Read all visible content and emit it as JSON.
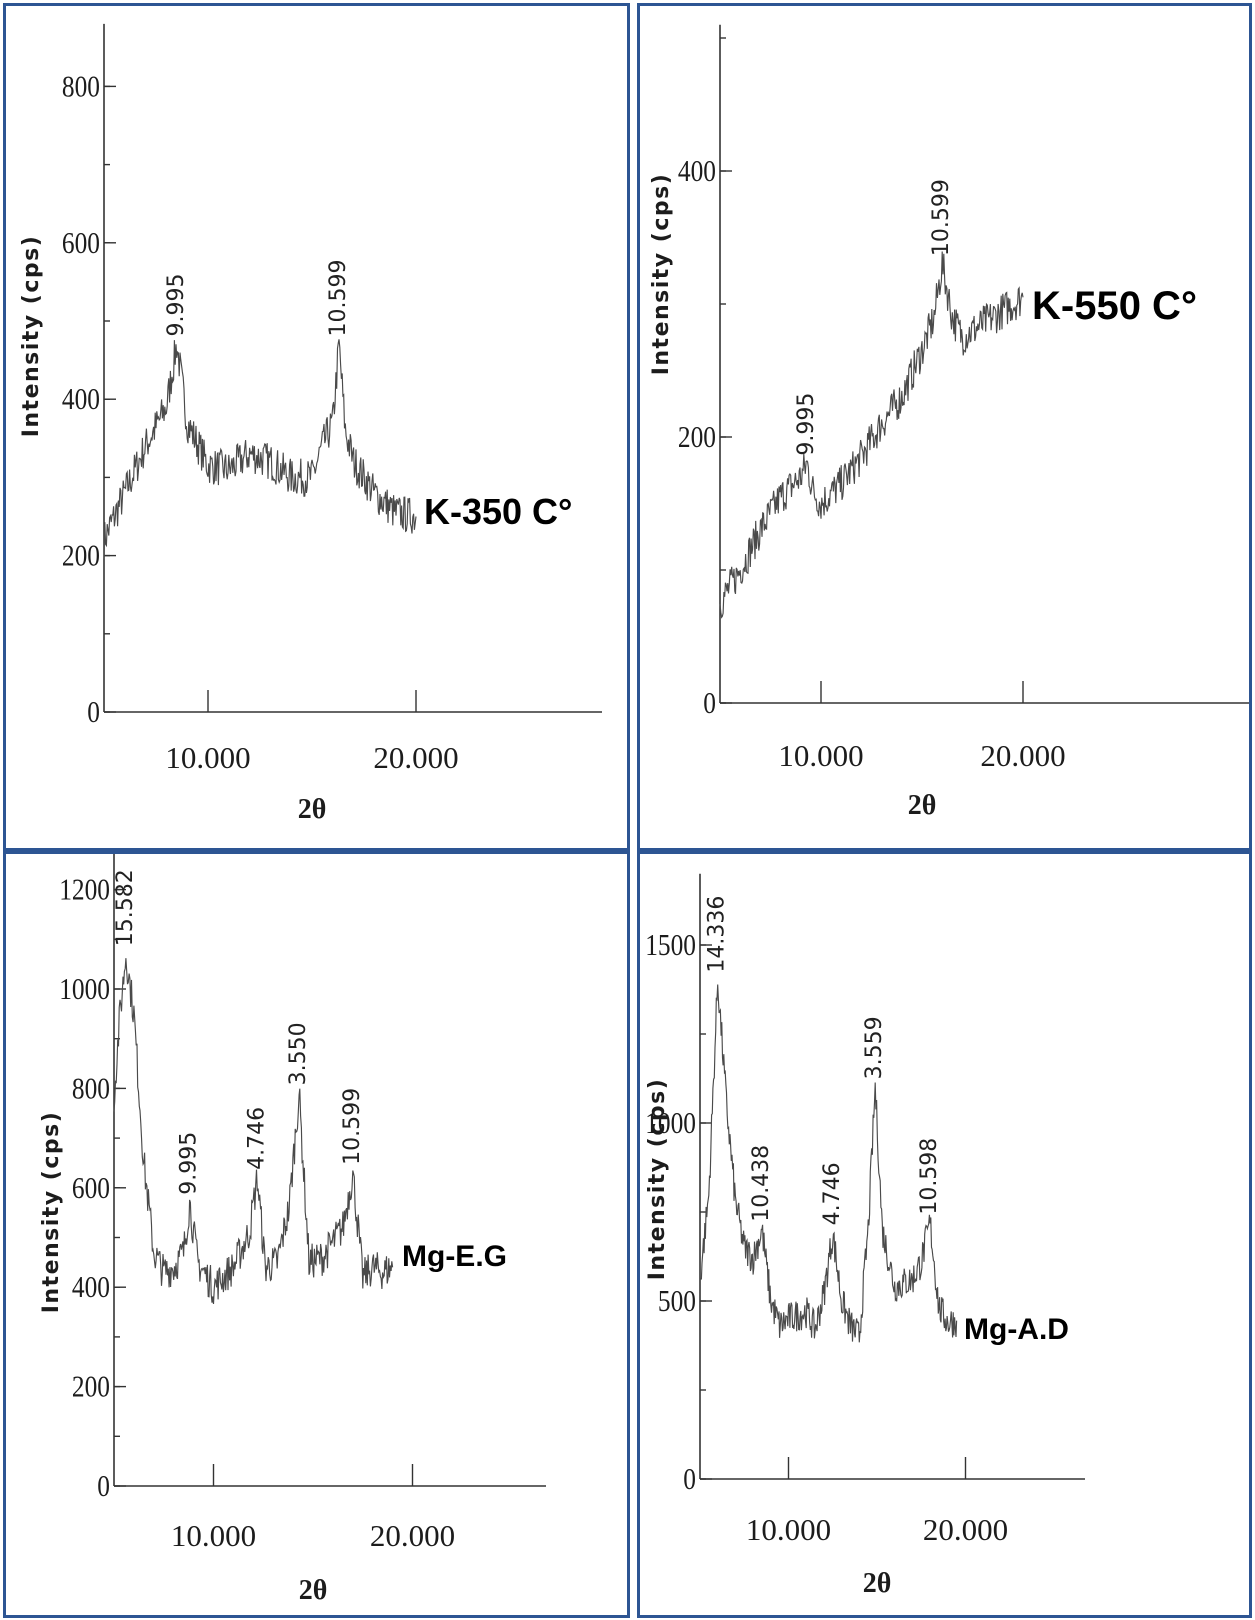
{
  "chart_data": [
    {
      "type": "line",
      "sample_label": "K-350 C°",
      "xlabel": "2θ",
      "ylabel": "Intensity (cps)",
      "x_ticks": [
        10,
        20
      ],
      "x_tick_labels": [
        "10.000",
        "20.000"
      ],
      "y_ticks": [
        0,
        200,
        400,
        600,
        800
      ],
      "y_tick_labels": [
        "0",
        "200",
        "400",
        "600",
        "800"
      ],
      "xlim": [
        5,
        29
      ],
      "ylim": [
        0,
        880
      ],
      "peaks": [
        {
          "label": "9.995",
          "x": 8.5,
          "y": 470
        },
        {
          "label": "10.599",
          "x": 16.3,
          "y": 470
        }
      ],
      "series": [
        {
          "x": [
            5,
            6,
            7,
            8,
            8.5,
            9,
            10,
            11,
            12,
            13,
            14,
            15,
            15.5,
            16,
            16.3,
            16.6,
            17,
            18,
            19,
            20
          ],
          "y": [
            220,
            280,
            340,
            390,
            470,
            370,
            315,
            310,
            330,
            320,
            300,
            300,
            340,
            370,
            470,
            360,
            320,
            280,
            255,
            250
          ]
        }
      ]
    },
    {
      "type": "line",
      "sample_label": "K-550 C°",
      "xlabel": "2θ",
      "ylabel": "Intensity (cps)",
      "x_ticks": [
        10,
        20
      ],
      "x_tick_labels": [
        "10.000",
        "20.000"
      ],
      "y_ticks": [
        0,
        200,
        400
      ],
      "y_tick_labels": [
        "0",
        "200",
        "400"
      ],
      "xlim": [
        5,
        30
      ],
      "ylim": [
        0,
        510
      ],
      "peaks": [
        {
          "label": "9.995",
          "x": 9.3,
          "y": 180
        },
        {
          "label": "10.599",
          "x": 16.0,
          "y": 330
        }
      ],
      "series": [
        {
          "x": [
            5,
            6,
            7,
            8,
            9,
            9.3,
            9.6,
            10,
            11,
            12,
            13,
            14,
            15,
            15.6,
            16,
            16.5,
            17,
            18,
            19,
            20
          ],
          "y": [
            75,
            100,
            130,
            155,
            170,
            180,
            160,
            150,
            165,
            185,
            210,
            230,
            265,
            290,
            330,
            290,
            275,
            285,
            295,
            305
          ]
        }
      ]
    },
    {
      "type": "line",
      "sample_label": "Mg-E.G",
      "xlabel": "2θ",
      "ylabel": "Intensity (cps)",
      "x_ticks": [
        10,
        20
      ],
      "x_tick_labels": [
        "10.000",
        "20.000"
      ],
      "y_ticks": [
        0,
        200,
        400,
        600,
        800,
        1000,
        1200
      ],
      "y_tick_labels": [
        "0",
        "200",
        "400",
        "600",
        "800",
        "1000",
        "1200"
      ],
      "xlim": [
        5,
        29
      ],
      "ylim": [
        0,
        1330
      ],
      "peaks": [
        {
          "label": "15.582",
          "x": 5.6,
          "y": 1070
        },
        {
          "label": "9.995",
          "x": 8.8,
          "y": 570
        },
        {
          "label": "4.746",
          "x": 12.2,
          "y": 620
        },
        {
          "label": "3.550",
          "x": 14.3,
          "y": 790
        },
        {
          "label": "10.599",
          "x": 17.0,
          "y": 630
        }
      ],
      "series": [
        {
          "x": [
            5,
            5.3,
            5.6,
            6,
            6.5,
            7,
            7.5,
            8,
            8.5,
            8.8,
            9.2,
            10,
            11,
            11.8,
            12.2,
            12.6,
            13.2,
            13.8,
            14.3,
            14.8,
            15.5,
            16.5,
            17,
            17.5,
            18,
            18.5,
            19
          ],
          "y": [
            780,
            950,
            1070,
            950,
            650,
            470,
            430,
            440,
            470,
            570,
            450,
            400,
            440,
            510,
            620,
            440,
            450,
            560,
            790,
            450,
            460,
            520,
            630,
            420,
            440,
            430,
            440
          ]
        }
      ]
    },
    {
      "type": "line",
      "sample_label": "Mg-A.D",
      "xlabel": "2θ",
      "ylabel": "Intensity (cps)",
      "x_ticks": [
        10,
        20
      ],
      "x_tick_labels": [
        "10.000",
        "20.000"
      ],
      "y_ticks": [
        0,
        500,
        1000,
        1500
      ],
      "y_tick_labels": [
        "0",
        "500",
        "1000",
        "1500"
      ],
      "xlim": [
        5,
        27
      ],
      "ylim": [
        0,
        1700
      ],
      "peaks": [
        {
          "label": "14.336",
          "x": 6.0,
          "y": 1400
        },
        {
          "label": "10.438",
          "x": 8.5,
          "y": 700
        },
        {
          "label": "4.746",
          "x": 12.5,
          "y": 690
        },
        {
          "label": "3.559",
          "x": 14.9,
          "y": 1100
        },
        {
          "label": "10.598",
          "x": 18.0,
          "y": 720
        }
      ],
      "series": [
        {
          "x": [
            5,
            5.5,
            6,
            6.5,
            7,
            7.5,
            8,
            8.5,
            9,
            9.5,
            10,
            11,
            11.5,
            12,
            12.5,
            13,
            13.5,
            14,
            14.5,
            14.9,
            15.3,
            16,
            17,
            17.5,
            18,
            18.5,
            19,
            19.5
          ],
          "y": [
            560,
            800,
            1400,
            1050,
            780,
            650,
            620,
            700,
            500,
            430,
            450,
            470,
            420,
            520,
            690,
            500,
            430,
            400,
            700,
            1100,
            700,
            540,
            560,
            610,
            720,
            480,
            440,
            445
          ]
        }
      ]
    }
  ]
}
